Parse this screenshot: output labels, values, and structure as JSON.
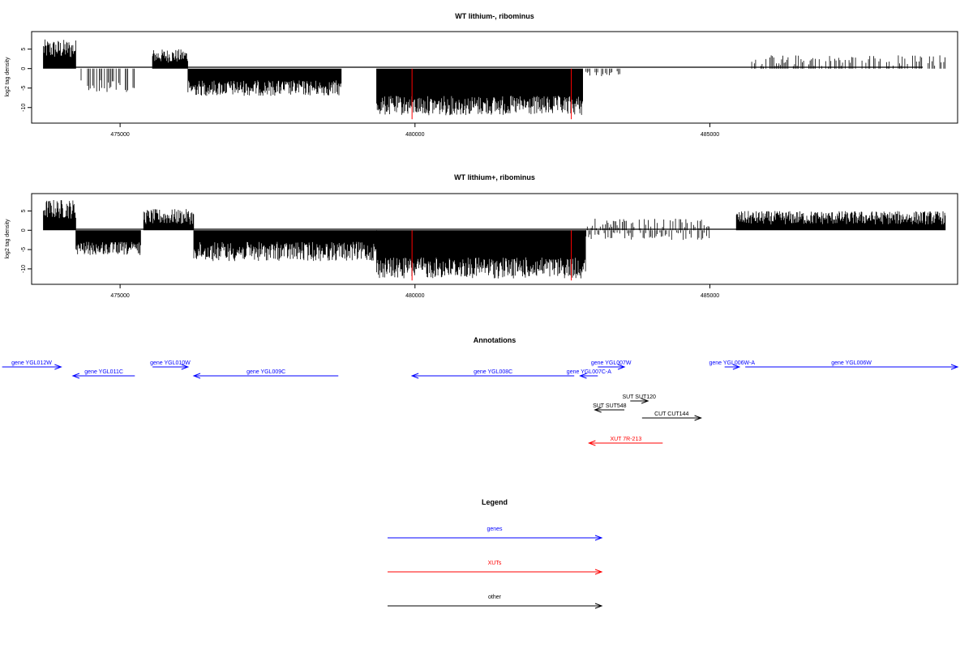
{
  "colors": {
    "genes": "#0000ff",
    "xuts": "#ff0000",
    "other": "#000000",
    "bars": "#000000",
    "marker": "#ff0000"
  },
  "chart_data": [
    {
      "type": "bar",
      "title": "WT lithium-, ribominus",
      "ylabel": "log2 tag density",
      "xlim": [
        473500,
        489200
      ],
      "ylim": [
        -14,
        9.5
      ],
      "yticks": [
        5,
        0,
        -5,
        -10
      ],
      "xticks": [
        475000,
        480000,
        485000
      ],
      "xtick_labels": [
        "475000",
        "480000",
        "485000"
      ],
      "marker_lines": [
        479950,
        482650
      ],
      "marker_depth": -13,
      "segments": [
        {
          "x0": 473700,
          "x1": 474250,
          "sign": 1,
          "lo": 2.5,
          "hi": 7.5
        },
        {
          "x0": 474250,
          "x1": 475250,
          "sign": -1,
          "lo": 3,
          "hi": 6
        },
        {
          "x0": 475550,
          "x1": 476150,
          "sign": 1,
          "lo": 1.5,
          "hi": 5
        },
        {
          "x0": 476150,
          "x1": 478750,
          "sign": -1,
          "lo": 3,
          "hi": 7
        },
        {
          "x0": 479350,
          "x1": 482850,
          "sign": -1,
          "lo": 7,
          "hi": 12
        },
        {
          "x0": 482900,
          "x1": 483500,
          "sign": -1,
          "lo": 0.5,
          "hi": 2
        },
        {
          "x0": 485600,
          "x1": 489000,
          "sign": 1,
          "lo": 0.5,
          "hi": 3.5
        }
      ]
    },
    {
      "type": "bar",
      "title": "WT lithium+, ribominus",
      "ylabel": "log2 tag density",
      "xlim": [
        473500,
        489200
      ],
      "ylim": [
        -14,
        9.5
      ],
      "yticks": [
        5,
        0,
        -5,
        -10
      ],
      "xticks": [
        475000,
        480000,
        485000
      ],
      "xtick_labels": [
        "475000",
        "480000",
        "485000"
      ],
      "marker_lines": [
        479950,
        482650
      ],
      "marker_depth": -13,
      "segments": [
        {
          "x0": 473700,
          "x1": 474250,
          "sign": 1,
          "lo": 3,
          "hi": 8
        },
        {
          "x0": 474250,
          "x1": 475350,
          "sign": -1,
          "lo": 3,
          "hi": 6.5
        },
        {
          "x0": 475400,
          "x1": 476250,
          "sign": 1,
          "lo": 1.5,
          "hi": 5.5
        },
        {
          "x0": 476250,
          "x1": 479350,
          "sign": -1,
          "lo": 3,
          "hi": 8
        },
        {
          "x0": 479350,
          "x1": 482900,
          "sign": -1,
          "lo": 7,
          "hi": 12.5
        },
        {
          "x0": 482900,
          "x1": 485000,
          "sign": 1,
          "lo": 0.5,
          "hi": 3
        },
        {
          "x0": 482900,
          "x1": 485000,
          "sign": -1,
          "lo": 0.5,
          "hi": 2.5
        },
        {
          "x0": 485450,
          "x1": 489000,
          "sign": 1,
          "lo": 1.5,
          "hi": 5
        }
      ]
    }
  ],
  "annotations": {
    "title": "Annotations",
    "features": [
      {
        "label": "gene YGL012W",
        "start": 473000,
        "end": 474000,
        "dir": 1,
        "cls": "genes",
        "row": 0
      },
      {
        "label": "gene YGL011C",
        "start": 474200,
        "end": 475250,
        "dir": -1,
        "cls": "genes",
        "row": 1
      },
      {
        "label": "gene YGL010W",
        "start": 475550,
        "end": 476150,
        "dir": 1,
        "cls": "genes",
        "row": 0
      },
      {
        "label": "gene YGL009C",
        "start": 476250,
        "end": 478700,
        "dir": -1,
        "cls": "genes",
        "row": 1
      },
      {
        "label": "gene YGL008C",
        "start": 479950,
        "end": 482700,
        "dir": -1,
        "cls": "genes",
        "row": 1
      },
      {
        "label": "gene YGL007C-A",
        "start": 482800,
        "end": 483100,
        "dir": -1,
        "cls": "genes",
        "row": 1
      },
      {
        "label": "gene YGL007W",
        "start": 483100,
        "end": 483550,
        "dir": 1,
        "cls": "genes",
        "row": 0
      },
      {
        "label": "gene YGL006W-A",
        "start": 485250,
        "end": 485500,
        "dir": 1,
        "cls": "genes",
        "row": 0
      },
      {
        "label": "gene YGL006W",
        "start": 485600,
        "end": 489200,
        "dir": 1,
        "cls": "genes",
        "row": 0
      },
      {
        "label": "SUT SUT120",
        "start": 483650,
        "end": 483950,
        "dir": 1,
        "cls": "other",
        "row": 2
      },
      {
        "label": "SUT SUT548",
        "start": 483050,
        "end": 483550,
        "dir": -1,
        "cls": "other",
        "row": 3
      },
      {
        "label": "CUT CUT144",
        "start": 483850,
        "end": 484850,
        "dir": 1,
        "cls": "other",
        "row": 4
      },
      {
        "label": "XUT 7R-213",
        "start": 482950,
        "end": 484200,
        "dir": -1,
        "cls": "xuts",
        "row": 5
      }
    ]
  },
  "legend": {
    "title": "Legend",
    "items": [
      {
        "label": "genes",
        "cls": "genes"
      },
      {
        "label": "XUTs",
        "cls": "xuts"
      },
      {
        "label": "other",
        "cls": "other"
      }
    ]
  }
}
